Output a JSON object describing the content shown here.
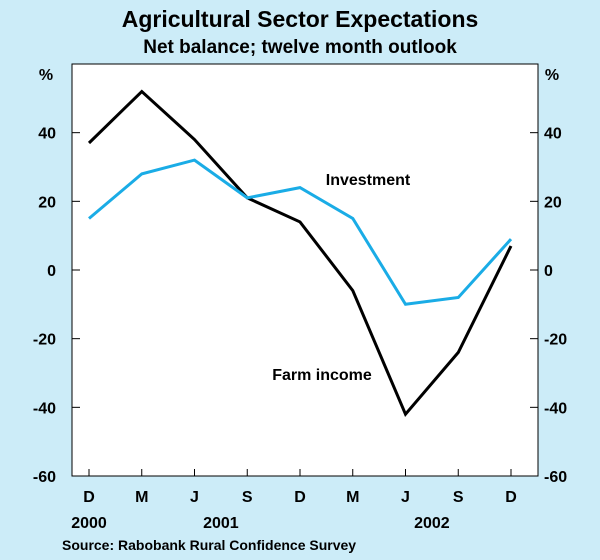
{
  "chart_data": {
    "type": "line",
    "title": "Agricultural Sector Expectations",
    "subtitle": "Net balance; twelve month outlook",
    "source": "Source: Rabobank Rural Confidence Survey",
    "ylabel_left": "%",
    "ylabel_right": "%",
    "ylim": [
      -60,
      60
    ],
    "yticks": [
      40,
      20,
      0,
      -20,
      -40,
      -60
    ],
    "ytick_labels": [
      "40",
      "20",
      "0",
      "-20",
      "-40",
      "-60"
    ],
    "categories": [
      "D",
      "M",
      "J",
      "S",
      "D",
      "M",
      "J",
      "S",
      "D"
    ],
    "year_labels": [
      {
        "label": "2000",
        "index": 0
      },
      {
        "label": "2001",
        "index": 2.5
      },
      {
        "label": "2002",
        "index": 6.5
      }
    ],
    "series": [
      {
        "name": "Farm income",
        "color": "#000000",
        "values": [
          37,
          52,
          38,
          21,
          14,
          -6,
          -42,
          -24,
          7
        ]
      },
      {
        "name": "Investment",
        "color": "#1aace6",
        "values": [
          15,
          28,
          32,
          21,
          24,
          15,
          -10,
          -8,
          9
        ]
      }
    ],
    "annotations": [
      {
        "text": "Investment",
        "series": "Investment",
        "near_index": 5
      },
      {
        "text": "Farm income",
        "series": "Farm income",
        "near_index": 5
      }
    ],
    "grid": false
  }
}
